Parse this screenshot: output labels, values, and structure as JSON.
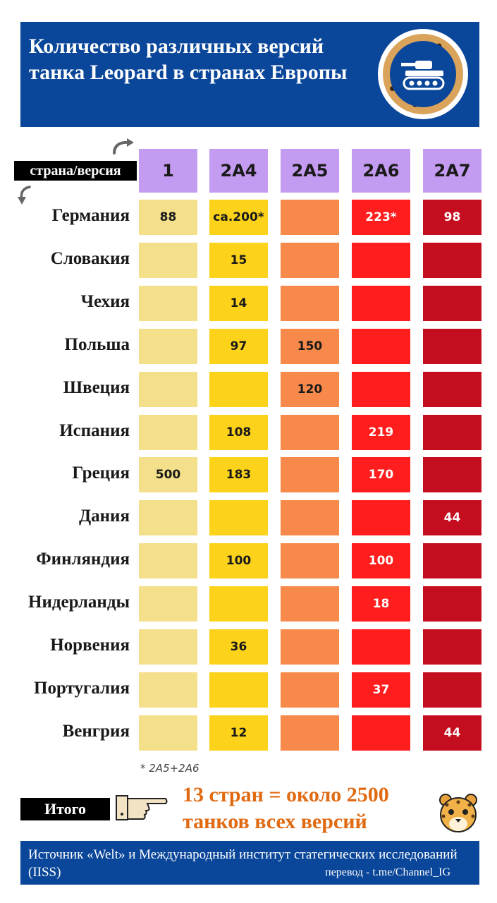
{
  "header": {
    "title": "Количество различных версий танка Leopard в странах Европы",
    "badge_icon": "tank-icon"
  },
  "chart_data": {
    "type": "heatmap",
    "corner_label": "страна/версия",
    "columns": [
      "1",
      "2A4",
      "2A5",
      "2A6",
      "2A7"
    ],
    "column_colors": [
      "#f4df8a",
      "#fcd21a",
      "#f7894a",
      "#ff1d1d",
      "#c40d1e"
    ],
    "rows": [
      {
        "country": "Германия",
        "values": [
          "88",
          "ca.200*",
          "",
          "223*",
          "98"
        ]
      },
      {
        "country": "Словакия",
        "values": [
          "",
          "15",
          "",
          "",
          ""
        ]
      },
      {
        "country": "Чехия",
        "values": [
          "",
          "14",
          "",
          "",
          ""
        ]
      },
      {
        "country": "Польша",
        "values": [
          "",
          "97",
          "150",
          "",
          ""
        ]
      },
      {
        "country": "Швеция",
        "values": [
          "",
          "",
          "120",
          "",
          ""
        ]
      },
      {
        "country": "Испания",
        "values": [
          "",
          "108",
          "",
          "219",
          ""
        ]
      },
      {
        "country": "Греция",
        "values": [
          "500",
          "183",
          "",
          "170",
          ""
        ]
      },
      {
        "country": "Дания",
        "values": [
          "",
          "",
          "",
          "",
          "44"
        ]
      },
      {
        "country": "Финляндия",
        "values": [
          "",
          "100",
          "",
          "100",
          ""
        ]
      },
      {
        "country": "Нидерланды",
        "values": [
          "",
          "",
          "",
          "18",
          ""
        ]
      },
      {
        "country": "Норвения",
        "values": [
          "",
          "36",
          "",
          "",
          ""
        ]
      },
      {
        "country": "Португалия",
        "values": [
          "",
          "",
          "",
          "37",
          ""
        ]
      },
      {
        "country": "Венгрия",
        "values": [
          "",
          "12",
          "",
          "",
          "44"
        ]
      }
    ],
    "footnote": "* 2A5+2A6"
  },
  "summary": {
    "label": "Итого",
    "pointer_icon": "pointing-hand-icon",
    "text": "13 стран = около 2500 танков всех версий",
    "mascot_icon": "leopard-icon"
  },
  "footer": {
    "source": "Источник «Welt» и Международный институт статегических исследований (IISS)",
    "credit": "перевод - t.me/Channel_IG"
  }
}
